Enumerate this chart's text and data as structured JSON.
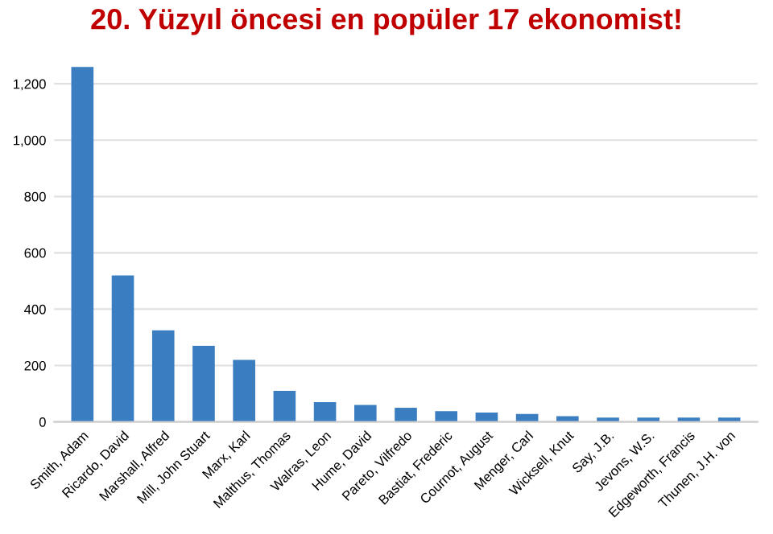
{
  "chart_data": {
    "type": "bar",
    "title": "20. Yüzyıl öncesi en popüler 17 ekonomist!",
    "categories": [
      "Smith, Adam",
      "Ricardo, David",
      "Marshall, Alfred",
      "Mill, John Stuart",
      "Marx, Karl",
      "Malthus, Thomas",
      "Walras, Leon",
      "Hume, David",
      "Pareto, Vilfredo",
      "Bastiat, Frederic",
      "Cournot, August",
      "Menger, Carl",
      "Wicksell, Knut",
      "Say, J.B.",
      "Jevons, W.S.",
      "Edgeworth, Francis",
      "Thunen, J.H. von"
    ],
    "values": [
      1260,
      520,
      325,
      270,
      220,
      110,
      70,
      60,
      50,
      38,
      33,
      28,
      20,
      15,
      15,
      15,
      15
    ],
    "color": "#3a7dc0",
    "ylim": [
      0,
      1270
    ],
    "yticks": [
      0,
      {
        "value": 200,
        "label": "200"
      },
      {
        "value": 400,
        "label": "400"
      },
      {
        "value": 600,
        "label": "600"
      },
      {
        "value": 800,
        "label": "800"
      },
      {
        "value": 1000,
        "label": "1,000"
      },
      {
        "value": 1200,
        "label": "1,200"
      }
    ],
    "grid": "y"
  }
}
